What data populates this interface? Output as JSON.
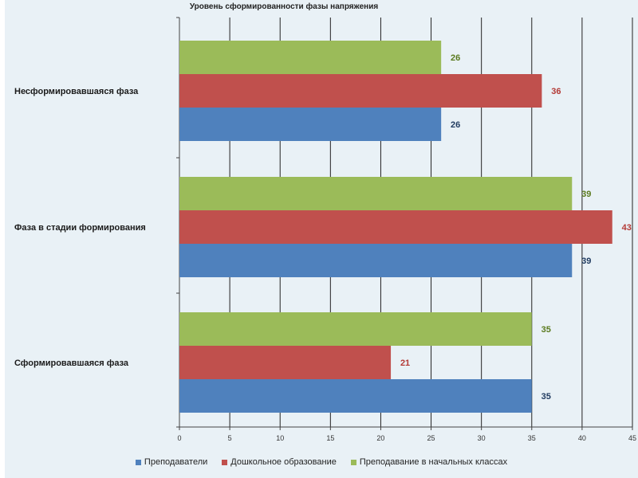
{
  "chart_data": {
    "type": "bar",
    "orientation": "horizontal",
    "title": "Уровень сформированности фазы напряжения",
    "categories": [
      "Несформировавшаяся фаза",
      "Фаза в стадии формирования",
      "Сформировавшаяся фаза"
    ],
    "series": [
      {
        "name": "Преподаватели",
        "color": "#4f81bd",
        "label_color": "#1f3a5f",
        "values": [
          26,
          39,
          35
        ]
      },
      {
        "name": "Дошкольное образование",
        "color": "#c0504d",
        "label_color": "#b33a36",
        "values": [
          36,
          43,
          21
        ]
      },
      {
        "name": "Преподавание в начальных классах",
        "color": "#9bbb59",
        "label_color": "#5a7a1e",
        "values": [
          26,
          39,
          35
        ]
      }
    ],
    "xlim": [
      0,
      45
    ],
    "xticks": [
      0,
      5,
      10,
      15,
      20,
      25,
      30,
      35,
      40,
      45
    ],
    "grid": true,
    "legend_position": "bottom"
  }
}
